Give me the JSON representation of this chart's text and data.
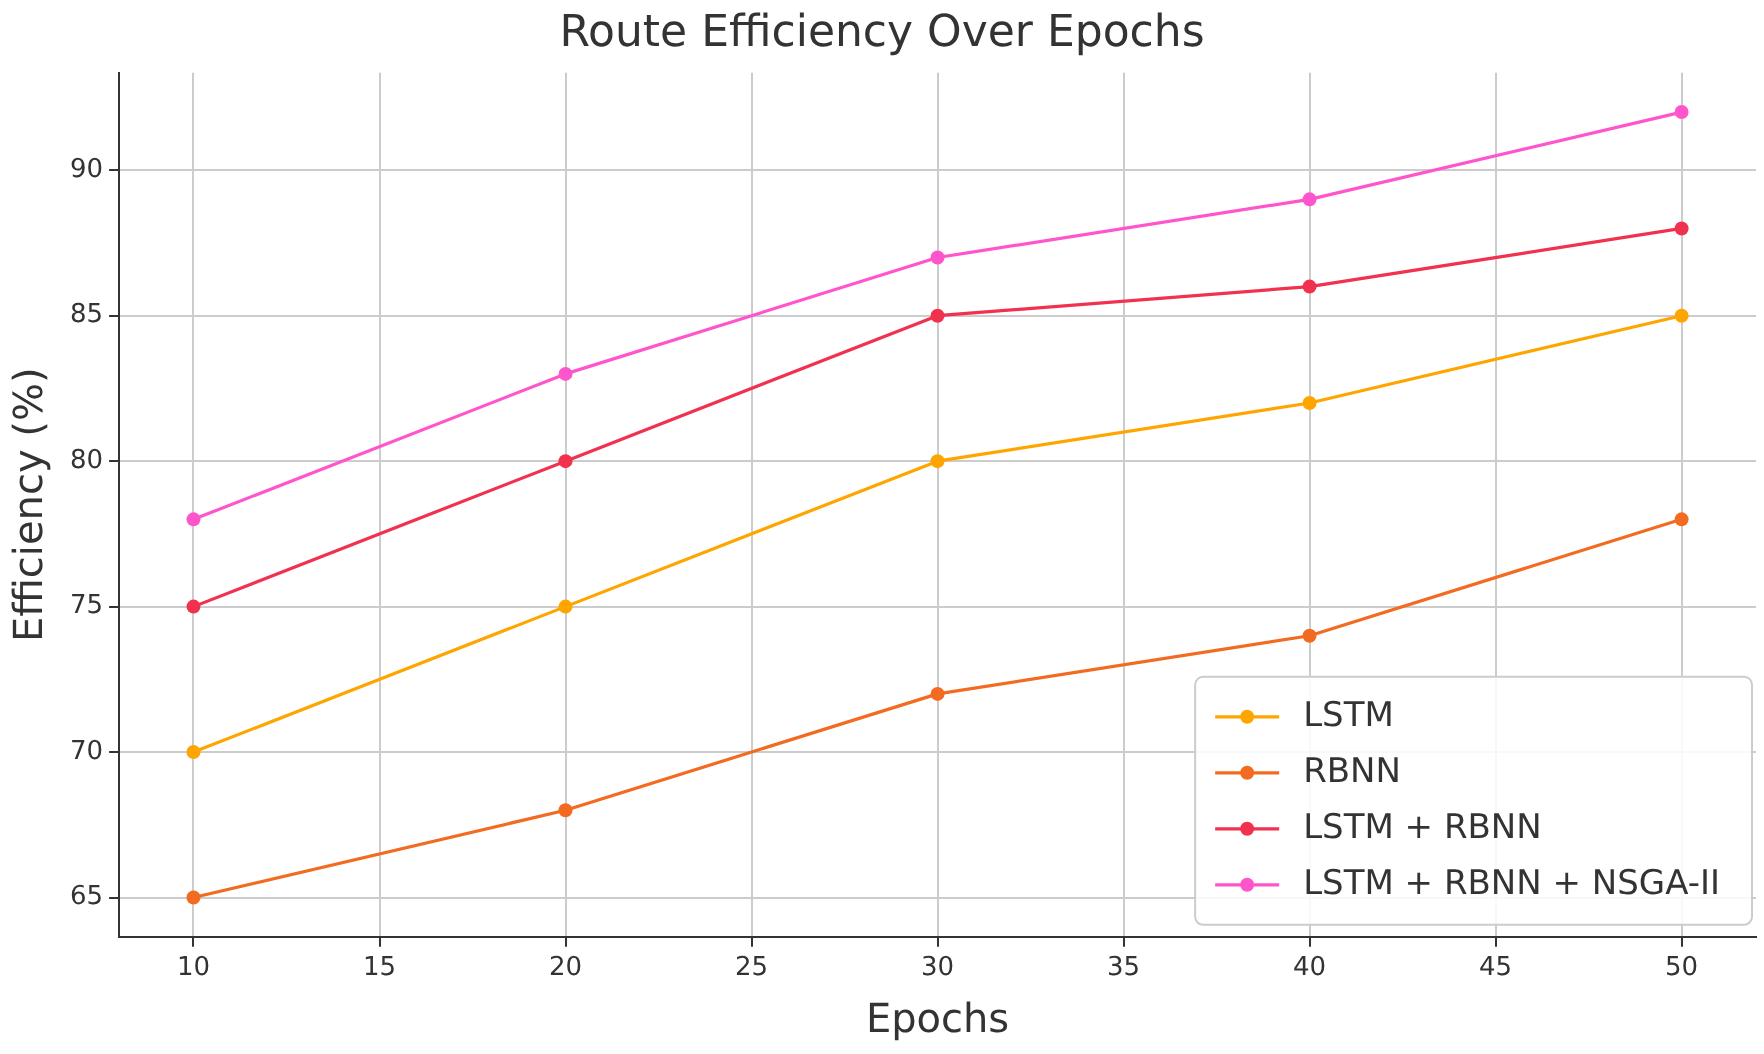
{
  "chart_data": {
    "type": "line",
    "title": "Route Efficiency Over Epochs",
    "xlabel": "Epochs",
    "ylabel": "Efficiency (%)",
    "x": [
      10,
      20,
      30,
      40,
      50
    ],
    "series": [
      {
        "name": "LSTM",
        "color": "#ffa500",
        "values": [
          70,
          75,
          80,
          82,
          85
        ]
      },
      {
        "name": "RBNN",
        "color": "#f26b21",
        "values": [
          65,
          68,
          72,
          74,
          78
        ]
      },
      {
        "name": "LSTM + RBNN",
        "color": "#f0324f",
        "values": [
          75,
          80,
          85,
          86,
          88
        ]
      },
      {
        "name": "LSTM + RBNN + NSGA-II",
        "color": "#ff55cc",
        "values": [
          78,
          83,
          87,
          89,
          92
        ]
      }
    ],
    "xlim": [
      8,
      52
    ],
    "xticks": [
      10,
      15,
      20,
      25,
      30,
      35,
      40,
      45,
      50
    ],
    "ylim": [
      63.65,
      93.35
    ],
    "yticks": [
      65,
      70,
      75,
      80,
      85,
      90
    ],
    "grid": true,
    "legend": "bottom right",
    "marker": "circle",
    "line_style": "solid"
  }
}
